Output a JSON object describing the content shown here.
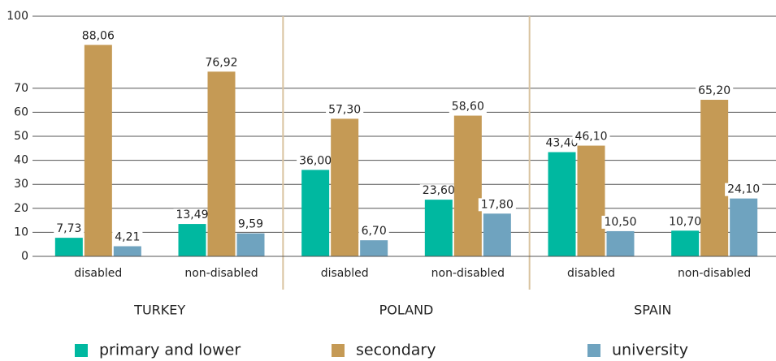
{
  "chart_data": {
    "type": "grouped_bar",
    "groups": [
      "TURKEY",
      "POLAND",
      "SPAIN"
    ],
    "categories": [
      "disabled",
      "non-disabled",
      "disabled",
      "non-disabled",
      "disabled",
      "non-disabled"
    ],
    "series": [
      {
        "name": "primary and lower",
        "color": "#00b8a0",
        "values": [
          7.73,
          13.49,
          36.0,
          23.6,
          43.4,
          10.7
        ],
        "value_labels": [
          "7,73",
          "13,49",
          "36,00",
          "23,60",
          "43,40",
          "10,70"
        ]
      },
      {
        "name": "secondary",
        "color": "#c59a55",
        "values": [
          88.06,
          76.92,
          57.3,
          58.6,
          46.1,
          65.2
        ],
        "value_labels": [
          "88,06",
          "76,92",
          "57,30",
          "58,60",
          "46,10",
          "65,20"
        ]
      },
      {
        "name": "university",
        "color": "#6fa3bf",
        "values": [
          4.21,
          9.59,
          6.7,
          17.8,
          10.5,
          24.1
        ],
        "value_labels": [
          "4,21",
          "9,59",
          "6,70",
          "17,80",
          "10,50",
          "24,10"
        ]
      }
    ],
    "ylim": [
      0,
      100
    ],
    "yticks": [
      0,
      10,
      20,
      30,
      40,
      50,
      60,
      70,
      100
    ],
    "grid": true
  }
}
